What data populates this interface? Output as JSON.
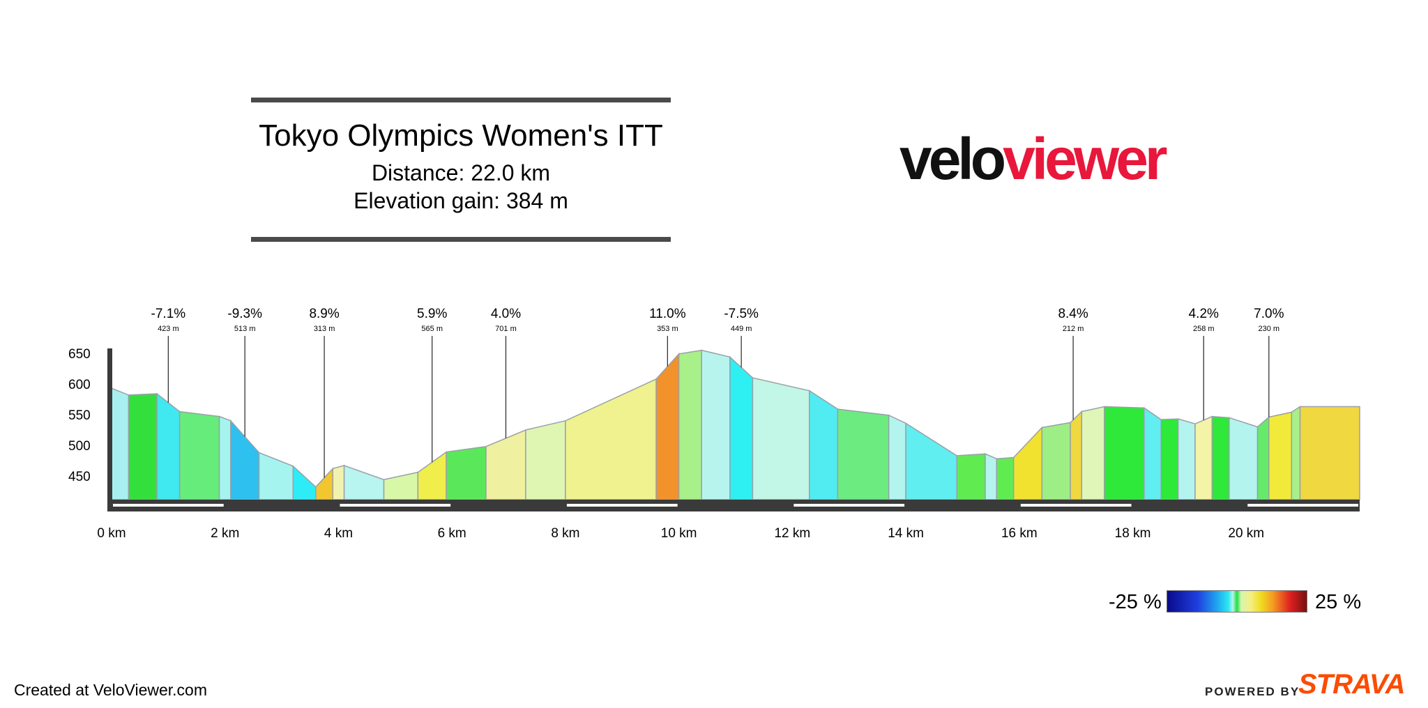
{
  "title_block": {
    "title": "Tokyo Olympics Women's ITT",
    "distance": "Distance: 22.0 km",
    "elevation_gain": "Elevation gain: 384 m"
  },
  "brand": {
    "part1": "velo",
    "part2": "viewer"
  },
  "legend": {
    "min_label": "-25 %",
    "max_label": "25 %"
  },
  "footer": {
    "created": "Created at VeloViewer.com",
    "powered": "POWERED BY",
    "strava": "STRAVA"
  },
  "colors": {
    "rule": "#4a4a4a",
    "axis": "#3a3a3a",
    "brand_red": "#e8173b",
    "strava_orange": "#fc4c02",
    "segment_edge": "#9aa0a8"
  },
  "chart_data": {
    "type": "area",
    "xlabel": "",
    "ylabel": "",
    "xlim": [
      0,
      22.0
    ],
    "ylim": [
      410,
      660
    ],
    "x_ticks": [
      0,
      2,
      4,
      6,
      8,
      10,
      12,
      14,
      16,
      18,
      20
    ],
    "x_tick_labels": [
      "0 km",
      "2 km",
      "4 km",
      "6 km",
      "8 km",
      "10 km",
      "12 km",
      "14 km",
      "16 km",
      "18 km",
      "20 km"
    ],
    "y_ticks": [
      450,
      500,
      550,
      600,
      650
    ],
    "y_tick_labels": [
      "450",
      "500",
      "550",
      "600",
      "650"
    ],
    "profile": [
      [
        0.0,
        593
      ],
      [
        0.3,
        582
      ],
      [
        0.8,
        584
      ],
      [
        1.2,
        555
      ],
      [
        1.9,
        547
      ],
      [
        2.1,
        540
      ],
      [
        2.6,
        488
      ],
      [
        3.2,
        466
      ],
      [
        3.6,
        432
      ],
      [
        3.9,
        462
      ],
      [
        4.1,
        467
      ],
      [
        4.8,
        444
      ],
      [
        5.4,
        456
      ],
      [
        5.9,
        489
      ],
      [
        6.6,
        498
      ],
      [
        7.3,
        525
      ],
      [
        8.0,
        540
      ],
      [
        9.6,
        608
      ],
      [
        10.0,
        649
      ],
      [
        10.4,
        655
      ],
      [
        10.9,
        644
      ],
      [
        11.3,
        610
      ],
      [
        12.3,
        589
      ],
      [
        12.8,
        559
      ],
      [
        13.7,
        549
      ],
      [
        14.0,
        536
      ],
      [
        14.9,
        483
      ],
      [
        15.4,
        486
      ],
      [
        15.6,
        478
      ],
      [
        15.9,
        480
      ],
      [
        16.4,
        529
      ],
      [
        16.9,
        537
      ],
      [
        17.1,
        555
      ],
      [
        17.5,
        563
      ],
      [
        18.2,
        561
      ],
      [
        18.5,
        542
      ],
      [
        18.8,
        543
      ],
      [
        19.1,
        535
      ],
      [
        19.4,
        547
      ],
      [
        19.7,
        545
      ],
      [
        20.2,
        530
      ],
      [
        20.4,
        546
      ],
      [
        20.8,
        554
      ],
      [
        20.95,
        563
      ],
      [
        22.0,
        563
      ]
    ],
    "segment_colors": [
      "#a8f0f0",
      "#33e03b",
      "#40e8f0",
      "#66ec7a",
      "#a6f4f0",
      "#2ec0ee",
      "#a6f4f0",
      "#2eecf6",
      "#f2c62e",
      "#f2f2b0",
      "#b8f4f0",
      "#d8f8a8",
      "#f0ee4a",
      "#5ae85a",
      "#eff0a0",
      "#dff6b2",
      "#eff28e",
      "#f2922a",
      "#a8f08a",
      "#b8f4ee",
      "#2ef0f2",
      "#c2f6e6",
      "#50ecf2",
      "#6ceb80",
      "#b4f4ee",
      "#60eef0",
      "#60ec50",
      "#b4f4ee",
      "#60ec50",
      "#f0e22e",
      "#9eee86",
      "#f0d840",
      "#dff6b8",
      "#2ee83a",
      "#60eef0",
      "#2ee83a",
      "#b4f4ee",
      "#f4f4a8",
      "#2ee83a",
      "#b4f4ee",
      "#66ea6a",
      "#f2ea3a",
      "#a8f08a",
      "#f0d840",
      "#1eea1e"
    ],
    "climb_annotations": [
      {
        "x": 1.0,
        "grade": "-7.1%",
        "length": "423 m"
      },
      {
        "x": 2.35,
        "grade": "-9.3%",
        "length": "513 m"
      },
      {
        "x": 3.75,
        "grade": "8.9%",
        "length": "313 m"
      },
      {
        "x": 5.65,
        "grade": "5.9%",
        "length": "565 m"
      },
      {
        "x": 6.95,
        "grade": "4.0%",
        "length": "701 m"
      },
      {
        "x": 9.8,
        "grade": "11.0%",
        "length": "353 m"
      },
      {
        "x": 11.1,
        "grade": "-7.5%",
        "length": "449 m"
      },
      {
        "x": 16.95,
        "grade": "8.4%",
        "length": "212 m"
      },
      {
        "x": 19.25,
        "grade": "4.2%",
        "length": "258 m"
      },
      {
        "x": 20.4,
        "grade": "7.0%",
        "length": "230 m"
      }
    ],
    "grid": false,
    "legend_position": "bottom-right"
  }
}
